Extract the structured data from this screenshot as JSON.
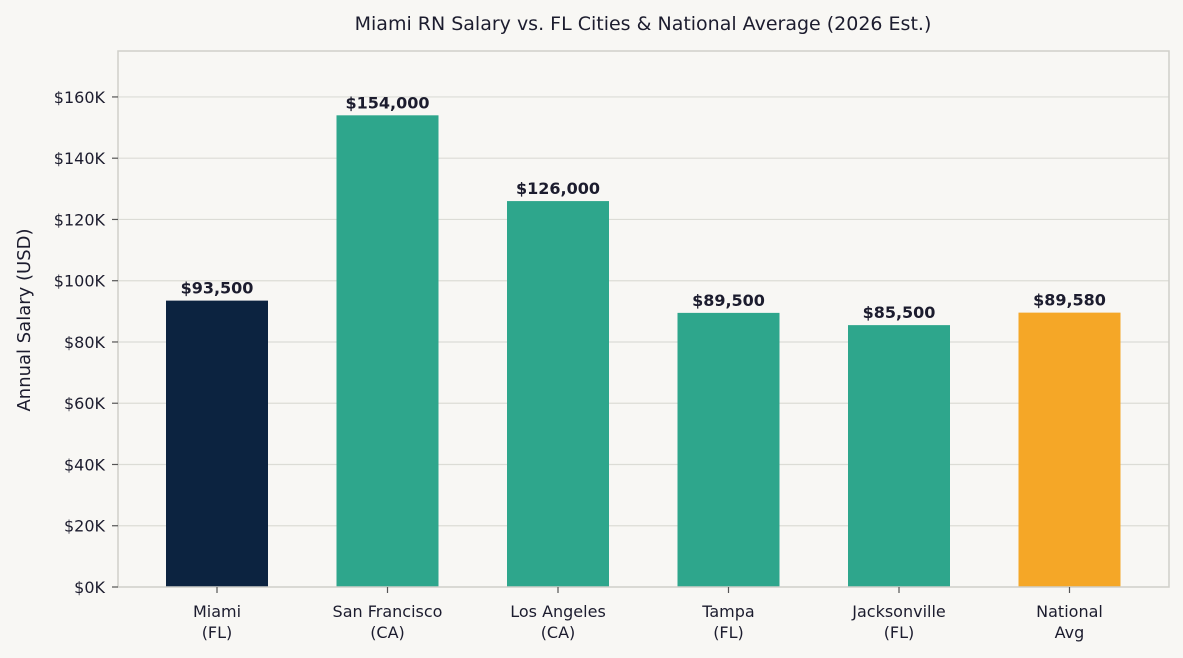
{
  "chart_data": {
    "type": "bar",
    "title": "Miami RN Salary vs. FL Cities & National Average (2026 Est.)",
    "ylabel": "Annual Salary (USD)",
    "xlabel": "",
    "ylim": [
      0,
      175000
    ],
    "yticks": [
      0,
      20000,
      40000,
      60000,
      80000,
      100000,
      120000,
      140000,
      160000
    ],
    "ytick_labels": [
      "$0K",
      "$20K",
      "$40K",
      "$60K",
      "$80K",
      "$100K",
      "$120K",
      "$140K",
      "$160K"
    ],
    "grid": true,
    "categories": [
      [
        "Miami",
        "(FL)"
      ],
      [
        "San Francisco",
        "(CA)"
      ],
      [
        "Los Angeles",
        "(CA)"
      ],
      [
        "Tampa",
        "(FL)"
      ],
      [
        "Jacksonville",
        "(FL)"
      ],
      [
        "National",
        "Avg"
      ]
    ],
    "values": [
      93500,
      154000,
      126000,
      89500,
      85500,
      89580
    ],
    "value_labels": [
      "$93,500",
      "$154,000",
      "$126,000",
      "$89,500",
      "$85,500",
      "$89,580"
    ],
    "colors": [
      "#0c2340",
      "#2ea68c",
      "#2ea68c",
      "#2ea68c",
      "#2ea68c",
      "#f5a727"
    ]
  }
}
